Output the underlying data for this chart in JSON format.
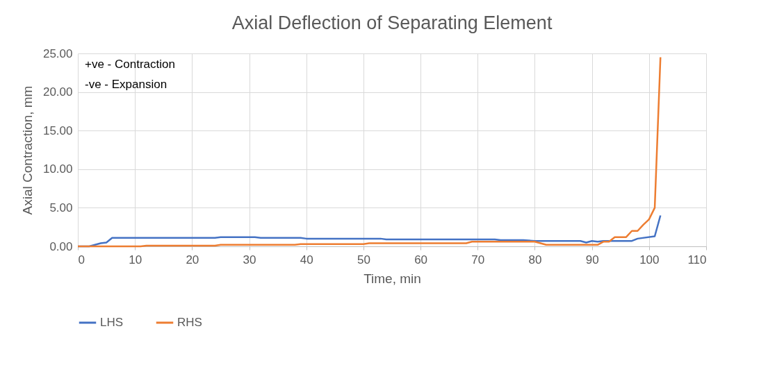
{
  "chart_data": {
    "type": "line",
    "title": "Axial Deflection of Separating Element",
    "xlabel": "Time, min",
    "ylabel": "Axial Contraction, mm",
    "annotations": [
      "+ve - Contraction",
      "-ve - Expansion"
    ],
    "xlim": [
      0,
      110
    ],
    "xticks": [
      0,
      10,
      20,
      30,
      40,
      50,
      60,
      70,
      80,
      90,
      100,
      110
    ],
    "ylim": [
      0,
      25
    ],
    "yticks": [
      {
        "value": 0,
        "label": "0.00"
      },
      {
        "value": 5,
        "label": "5.00"
      },
      {
        "value": 10,
        "label": "10.00"
      },
      {
        "value": 15,
        "label": "15.00"
      },
      {
        "value": 20,
        "label": "20.00"
      },
      {
        "value": 25,
        "label": "25.00"
      }
    ],
    "grid": true,
    "legend": "bottom",
    "marker": "none",
    "line_style": "solid",
    "series": [
      {
        "name": "LHS",
        "color": "#4472c4",
        "x": [
          0,
          2,
          3,
          4,
          5,
          6,
          24,
          25,
          31,
          32,
          39,
          40,
          53,
          54,
          73,
          74,
          78,
          80,
          88,
          89,
          90,
          91,
          92,
          97,
          98,
          101,
          102
        ],
        "values": [
          0,
          0,
          0.2,
          0.4,
          0.5,
          1.1,
          1.1,
          1.2,
          1.2,
          1.1,
          1.1,
          1.0,
          1.0,
          0.9,
          0.9,
          0.8,
          0.8,
          0.7,
          0.7,
          0.5,
          0.7,
          0.6,
          0.7,
          0.7,
          1.0,
          1.3,
          4.0
        ]
      },
      {
        "name": "RHS",
        "color": "#ed7d31",
        "x": [
          0,
          11,
          12,
          24,
          25,
          38,
          39,
          50,
          51,
          68,
          69,
          80,
          81,
          82,
          91,
          92,
          93,
          94,
          95,
          96,
          97,
          98,
          99,
          100,
          101,
          102
        ],
        "values": [
          0,
          0,
          0.1,
          0.1,
          0.2,
          0.2,
          0.3,
          0.3,
          0.4,
          0.4,
          0.6,
          0.6,
          0.4,
          0.2,
          0.2,
          0.6,
          0.6,
          1.2,
          1.2,
          1.2,
          2.0,
          2.0,
          2.8,
          3.5,
          5.0,
          24.5
        ]
      }
    ]
  }
}
